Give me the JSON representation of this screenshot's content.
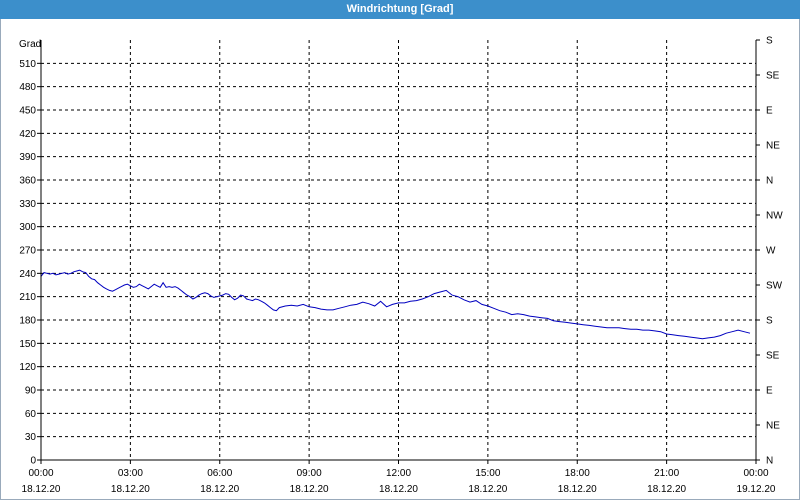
{
  "window": {
    "title": "Windrichtung [Grad]"
  },
  "chart_data": {
    "type": "line",
    "title": "Windrichtung [Grad]",
    "ylabel": "Grad",
    "ylim": [
      0,
      540
    ],
    "yticks": [
      0,
      30,
      60,
      90,
      120,
      150,
      180,
      210,
      240,
      270,
      300,
      330,
      360,
      390,
      420,
      450,
      480,
      510
    ],
    "right_ticks": [
      {
        "value": 0,
        "label": "N"
      },
      {
        "value": 45,
        "label": "NE"
      },
      {
        "value": 90,
        "label": "E"
      },
      {
        "value": 135,
        "label": "SE"
      },
      {
        "value": 180,
        "label": "S"
      },
      {
        "value": 225,
        "label": "SW"
      },
      {
        "value": 270,
        "label": "W"
      },
      {
        "value": 315,
        "label": "NW"
      },
      {
        "value": 360,
        "label": "N"
      },
      {
        "value": 405,
        "label": "NE"
      },
      {
        "value": 450,
        "label": "E"
      },
      {
        "value": 495,
        "label": "SE"
      },
      {
        "value": 540,
        "label": "S"
      }
    ],
    "xlim": [
      0,
      24
    ],
    "xticks": [
      {
        "hour": 0,
        "time": "00:00",
        "date": "18.12.20"
      },
      {
        "hour": 3,
        "time": "03:00",
        "date": "18.12.20"
      },
      {
        "hour": 6,
        "time": "06:00",
        "date": "18.12.20"
      },
      {
        "hour": 9,
        "time": "09:00",
        "date": "18.12.20"
      },
      {
        "hour": 12,
        "time": "12:00",
        "date": "18.12.20"
      },
      {
        "hour": 15,
        "time": "15:00",
        "date": "18.12.20"
      },
      {
        "hour": 18,
        "time": "18:00",
        "date": "18.12.20"
      },
      {
        "hour": 21,
        "time": "21:00",
        "date": "18.12.20"
      },
      {
        "hour": 24,
        "time": "00:00",
        "date": "19.12.20"
      }
    ],
    "grid": true,
    "line_color": "#0000c0",
    "series": [
      {
        "x": [
          0,
          0.1,
          0.2,
          0.3,
          0.4,
          0.5,
          0.6,
          0.7,
          0.8,
          0.9,
          1,
          1.1,
          1.2,
          1.3,
          1.4,
          1.5,
          1.6,
          1.7,
          1.8,
          1.9,
          2,
          2.1,
          2.2,
          2.3,
          2.4,
          2.5,
          2.6,
          2.7,
          2.8,
          2.9,
          3,
          3.1,
          3.2,
          3.3,
          3.4,
          3.5,
          3.6,
          3.7,
          3.8,
          3.9,
          4,
          4.1,
          4.2,
          4.3,
          4.4,
          4.5,
          4.6,
          4.7,
          4.8,
          4.9,
          5,
          5.1,
          5.2,
          5.3,
          5.4,
          5.5,
          5.6,
          5.7,
          5.8,
          5.9,
          6,
          6.1,
          6.2,
          6.3,
          6.4,
          6.5,
          6.6,
          6.7,
          6.8,
          6.9,
          7,
          7.1,
          7.2,
          7.3,
          7.4,
          7.5,
          7.6,
          7.7,
          7.8,
          7.9,
          8,
          8.2,
          8.4,
          8.6,
          8.8,
          9,
          9.2,
          9.4,
          9.6,
          9.8,
          10,
          10.2,
          10.4,
          10.6,
          10.8,
          11,
          11.2,
          11.4,
          11.6,
          11.8,
          12,
          12.2,
          12.4,
          12.6,
          12.8,
          13,
          13.2,
          13.4,
          13.6,
          13.8,
          14,
          14.2,
          14.4,
          14.6,
          14.8,
          15,
          15.2,
          15.4,
          15.6,
          15.8,
          16,
          16.2,
          16.4,
          16.6,
          16.8,
          17,
          17.2,
          17.4,
          17.6,
          17.8,
          18,
          18.2,
          18.4,
          18.6,
          18.8,
          19,
          19.2,
          19.4,
          19.6,
          19.8,
          20,
          20.2,
          20.4,
          20.6,
          20.8,
          21,
          21.2,
          21.4,
          21.6,
          21.8,
          22,
          22.2,
          22.4,
          22.6,
          22.8,
          23,
          23.2,
          23.4,
          23.6,
          23.8
        ],
        "values": [
          236,
          241,
          240,
          239,
          240,
          238,
          239,
          240,
          241,
          239,
          240,
          242,
          243,
          244,
          242,
          241,
          236,
          233,
          232,
          228,
          225,
          222,
          220,
          218,
          217,
          219,
          221,
          223,
          225,
          226,
          224,
          222,
          223,
          226,
          224,
          222,
          220,
          223,
          226,
          224,
          222,
          228,
          222,
          223,
          222,
          223,
          221,
          218,
          215,
          212,
          210,
          207,
          209,
          212,
          214,
          215,
          214,
          211,
          209,
          210,
          211,
          212,
          214,
          213,
          209,
          206,
          208,
          212,
          211,
          207,
          206,
          205,
          207,
          206,
          204,
          202,
          199,
          196,
          193,
          192,
          196,
          198,
          199,
          198,
          200,
          197,
          196,
          194,
          193,
          193,
          195,
          197,
          199,
          200,
          203,
          201,
          198,
          204,
          197,
          200,
          202,
          202,
          204,
          205,
          207,
          210,
          214,
          216,
          218,
          212,
          210,
          206,
          203,
          205,
          200,
          198,
          195,
          192,
          190,
          187,
          188,
          187,
          185,
          184,
          183,
          182,
          179,
          178,
          177,
          176,
          175,
          174,
          173,
          172,
          171,
          170,
          170,
          170,
          169,
          168,
          168,
          167,
          167,
          166,
          165,
          162,
          161,
          160,
          159,
          158,
          157,
          156,
          157,
          158,
          160,
          163,
          165,
          167,
          165,
          163
        ]
      }
    ]
  }
}
